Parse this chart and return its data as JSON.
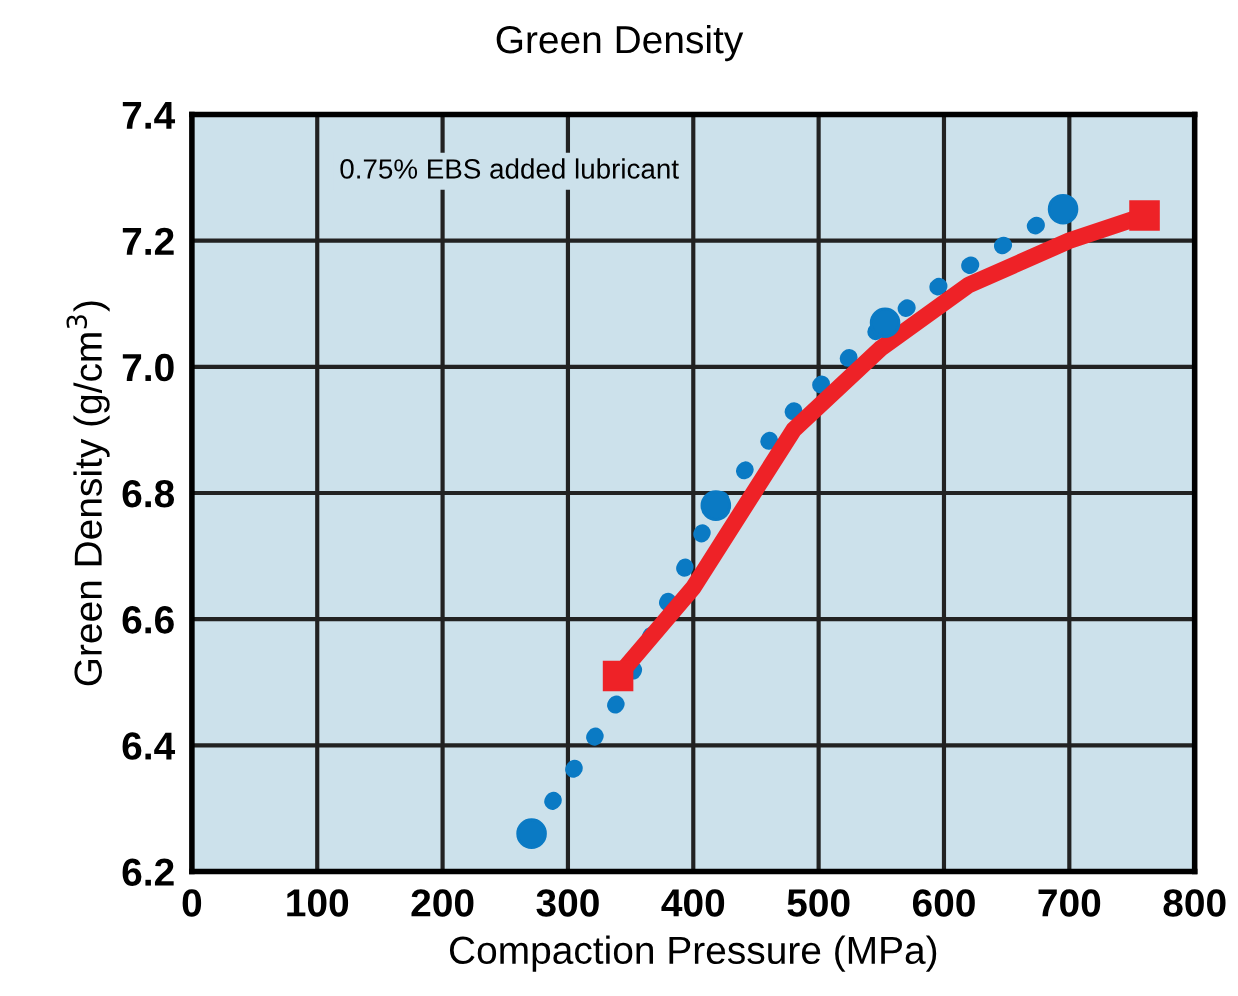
{
  "chart_data": {
    "type": "line",
    "title": "Green Density",
    "xlabel": "Compaction Pressure (MPa)",
    "ylabel": "Green Density (g/cm$^{3}$)",
    "annotations": [
      "0.75% EBS added lubricant"
    ],
    "series": [
      {
        "color": "#0a7ac4",
        "marker": "none",
        "line_style": "dotted",
        "x": [
          271,
          340,
          418,
          480,
          553,
          620,
          695
        ],
        "values": [
          6.26,
          6.47,
          6.78,
          6.93,
          7.07,
          7.16,
          7.25
        ]
      },
      {
        "type": "scatter",
        "color": "#0a7ac4",
        "marker": "circle",
        "x": [
          271,
          418,
          553,
          695
        ],
        "values": [
          6.26,
          6.78,
          7.07,
          7.25
        ]
      },
      {
        "color": "#ee2227",
        "marker": "none",
        "line_style": "solid",
        "x": [
          340,
          400,
          480,
          550,
          620,
          700,
          760
        ],
        "values": [
          6.51,
          6.65,
          6.9,
          7.03,
          7.13,
          7.2,
          7.24
        ]
      },
      {
        "type": "scatter",
        "color": "#ee2227",
        "marker": "square",
        "x": [
          340,
          760
        ],
        "values": [
          6.51,
          7.24
        ]
      }
    ],
    "xlim": [
      0,
      800
    ],
    "xticks": [
      0,
      100,
      200,
      300,
      400,
      500,
      600,
      700,
      800
    ],
    "ylim": [
      6.2,
      7.4
    ],
    "yticks": [
      {
        "value": 6.2,
        "label": "6.2"
      },
      {
        "value": 6.4,
        "label": "6.4"
      },
      {
        "value": 6.6,
        "label": "6.6"
      },
      {
        "value": 6.8,
        "label": "6.8"
      },
      {
        "value": 7.0,
        "label": "7.0"
      },
      {
        "value": 7.2,
        "label": "7.2"
      },
      {
        "value": 7.4,
        "label": "7.4"
      }
    ],
    "grid": true
  }
}
